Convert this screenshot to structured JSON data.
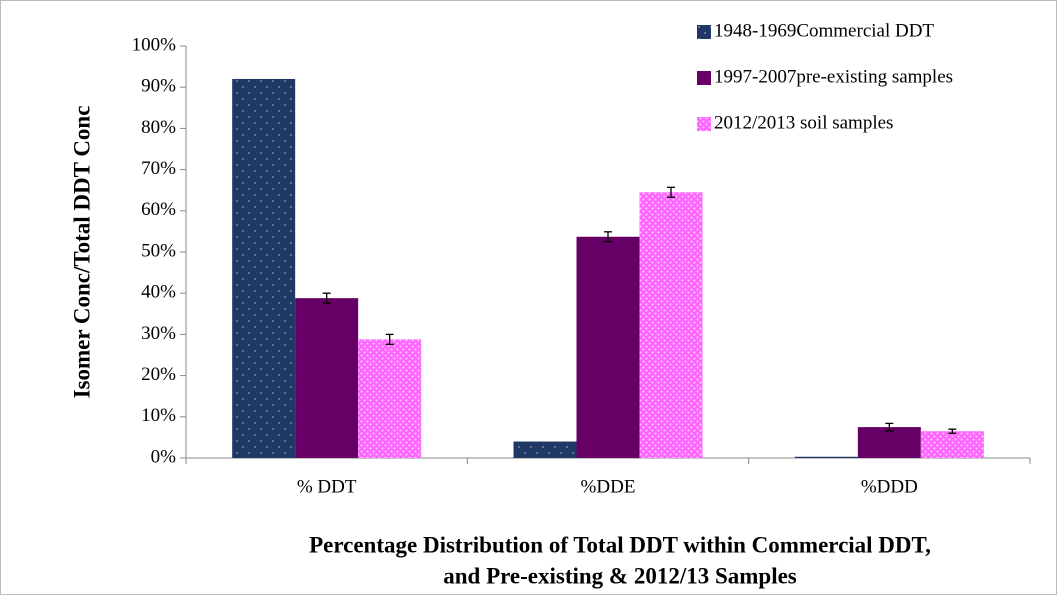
{
  "chart_data": {
    "type": "bar",
    "ylabel": "Isomer Conc/Total DDT Conc",
    "xlabel": [
      "Percentage Distribution of Total DDT within Commercial DDT,",
      "and Pre-existing & 2012/13 Samples"
    ],
    "categories": [
      "% DDT",
      "%DDE",
      "%DDD"
    ],
    "series": [
      {
        "name": "1948-1969Commercial DDT",
        "color": "#1f3864",
        "pattern": "dots",
        "values": [
          92,
          4,
          0.3
        ]
      },
      {
        "name": "1997-2007pre-existing samples",
        "color": "#660066",
        "values": [
          38.8,
          53.7,
          7.5
        ],
        "errors": [
          1.2,
          1.2,
          0.9
        ]
      },
      {
        "name": "2012/2013 soil samples",
        "color": "#ff66ff",
        "pattern": "dots",
        "values": [
          28.8,
          64.5,
          6.5
        ],
        "errors": [
          1.2,
          1.2,
          0.5
        ]
      }
    ],
    "ylim": [
      0,
      100
    ],
    "yticks": [
      {
        "value": 0,
        "label": "0%"
      },
      {
        "value": 10,
        "label": "10%"
      },
      {
        "value": 20,
        "label": "20%"
      },
      {
        "value": 30,
        "label": "30%"
      },
      {
        "value": 40,
        "label": "40%"
      },
      {
        "value": 50,
        "label": "50%"
      },
      {
        "value": 60,
        "label": "60%"
      },
      {
        "value": 70,
        "label": "70%"
      },
      {
        "value": 80,
        "label": "80%"
      },
      {
        "value": 90,
        "label": "90%"
      },
      {
        "value": 100,
        "label": "100%"
      }
    ],
    "legend": "top-right"
  }
}
